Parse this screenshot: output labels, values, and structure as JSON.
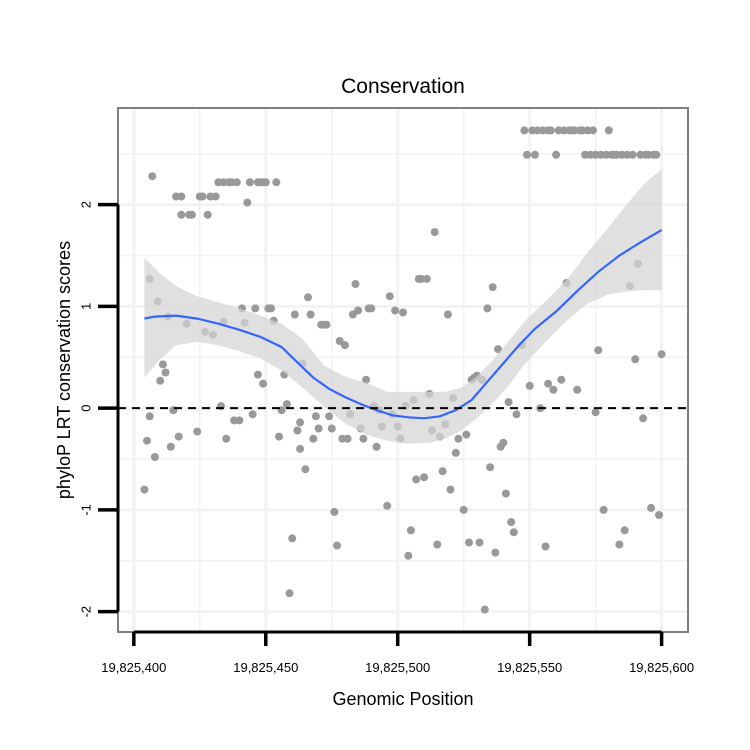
{
  "chart_data": {
    "type": "scatter",
    "title": "Conservation",
    "xlabel": "Genomic Position",
    "ylabel": "phyloP LRT conservation scores",
    "xlim": [
      19825394,
      19825610
    ],
    "ylim": [
      -2.2,
      2.95
    ],
    "x_ticks": [
      19825400,
      19825450,
      19825500,
      19825550,
      19825600
    ],
    "x_tick_labels": [
      "19,825,400",
      "19,825,450",
      "19,825,500",
      "19,825,550",
      "19,825,600"
    ],
    "y_ticks": [
      -2,
      -1,
      0,
      1,
      2
    ],
    "y_tick_labels": [
      "-2",
      "-1",
      "0",
      "1",
      "2"
    ],
    "reference_line": 0,
    "colors": {
      "points": "#999999",
      "smooth": "#3366ff",
      "band": "#d4d4d4",
      "frame": "#7f7f7f",
      "grid": "#f2f2f2"
    },
    "points": [
      [
        19825404,
        -0.8
      ],
      [
        19825405,
        -0.32
      ],
      [
        19825406,
        -0.08
      ],
      [
        19825406,
        1.27
      ],
      [
        19825407,
        2.28
      ],
      [
        19825408,
        -0.48
      ],
      [
        19825409,
        1.05
      ],
      [
        19825410,
        0.27
      ],
      [
        19825411,
        0.43
      ],
      [
        19825412,
        0.35
      ],
      [
        19825413,
        0.9
      ],
      [
        19825414,
        -0.38
      ],
      [
        19825415,
        -0.02
      ],
      [
        19825416,
        2.08
      ],
      [
        19825417,
        -0.28
      ],
      [
        19825418,
        2.08
      ],
      [
        19825418,
        1.9
      ],
      [
        19825420,
        0.83
      ],
      [
        19825421,
        1.9
      ],
      [
        19825422,
        1.9
      ],
      [
        19825424,
        -0.23
      ],
      [
        19825425,
        2.08
      ],
      [
        19825426,
        2.08
      ],
      [
        19825427,
        0.75
      ],
      [
        19825428,
        1.9
      ],
      [
        19825429,
        2.08
      ],
      [
        19825430,
        0.72
      ],
      [
        19825431,
        2.08
      ],
      [
        19825432,
        2.22
      ],
      [
        19825433,
        0.02
      ],
      [
        19825434,
        0.85
      ],
      [
        19825434,
        2.22
      ],
      [
        19825435,
        -0.3
      ],
      [
        19825436,
        2.22
      ],
      [
        19825437,
        2.22
      ],
      [
        19825438,
        -0.12
      ],
      [
        19825439,
        2.22
      ],
      [
        19825440,
        -0.12
      ],
      [
        19825441,
        0.98
      ],
      [
        19825442,
        0.84
      ],
      [
        19825443,
        2.02
      ],
      [
        19825444,
        2.22
      ],
      [
        19825445,
        -0.06
      ],
      [
        19825446,
        0.98
      ],
      [
        19825447,
        2.22
      ],
      [
        19825447,
        0.33
      ],
      [
        19825448,
        2.22
      ],
      [
        19825449,
        2.22
      ],
      [
        19825449,
        0.24
      ],
      [
        19825450,
        2.22
      ],
      [
        19825451,
        0.98
      ],
      [
        19825452,
        0.98
      ],
      [
        19825453,
        0.86
      ],
      [
        19825454,
        2.22
      ],
      [
        19825455,
        -0.28
      ],
      [
        19825456,
        -0.02
      ],
      [
        19825457,
        0.33
      ],
      [
        19825458,
        0.04
      ],
      [
        19825459,
        -1.82
      ],
      [
        19825460,
        -1.28
      ],
      [
        19825461,
        0.92
      ],
      [
        19825462,
        -0.22
      ],
      [
        19825463,
        -0.14
      ],
      [
        19825463,
        -0.4
      ],
      [
        19825464,
        0.44
      ],
      [
        19825465,
        -0.6
      ],
      [
        19825466,
        1.09
      ],
      [
        19825467,
        0.92
      ],
      [
        19825468,
        -0.3
      ],
      [
        19825469,
        -0.08
      ],
      [
        19825470,
        -0.2
      ],
      [
        19825471,
        0.82
      ],
      [
        19825472,
        0.82
      ],
      [
        19825473,
        0.82
      ],
      [
        19825474,
        -0.08
      ],
      [
        19825475,
        -0.2
      ],
      [
        19825476,
        -1.02
      ],
      [
        19825477,
        -1.35
      ],
      [
        19825478,
        0.66
      ],
      [
        19825479,
        -0.3
      ],
      [
        19825480,
        0.62
      ],
      [
        19825481,
        -0.3
      ],
      [
        19825482,
        -0.06
      ],
      [
        19825483,
        0.92
      ],
      [
        19825484,
        1.22
      ],
      [
        19825485,
        0.96
      ],
      [
        19825486,
        -0.2
      ],
      [
        19825487,
        -0.3
      ],
      [
        19825488,
        0.28
      ],
      [
        19825489,
        0.98
      ],
      [
        19825490,
        0.98
      ],
      [
        19825491,
        0.02
      ],
      [
        19825492,
        -0.38
      ],
      [
        19825493,
        -0.02
      ],
      [
        19825494,
        -0.18
      ],
      [
        19825496,
        -0.96
      ],
      [
        19825497,
        1.1
      ],
      [
        19825498,
        -0.06
      ],
      [
        19825499,
        0.96
      ],
      [
        19825500,
        -0.18
      ],
      [
        19825501,
        -0.3
      ],
      [
        19825502,
        0.94
      ],
      [
        19825503,
        0.02
      ],
      [
        19825504,
        -1.45
      ],
      [
        19825505,
        -1.2
      ],
      [
        19825506,
        0.08
      ],
      [
        19825507,
        -0.7
      ],
      [
        19825508,
        1.27
      ],
      [
        19825509,
        1.27
      ],
      [
        19825510,
        -0.68
      ],
      [
        19825511,
        1.27
      ],
      [
        19825512,
        0.14
      ],
      [
        19825513,
        -0.22
      ],
      [
        19825514,
        1.73
      ],
      [
        19825515,
        -1.34
      ],
      [
        19825516,
        -0.28
      ],
      [
        19825517,
        -0.62
      ],
      [
        19825518,
        -0.16
      ],
      [
        19825519,
        0.92
      ],
      [
        19825520,
        -0.8
      ],
      [
        19825521,
        0.1
      ],
      [
        19825522,
        -0.44
      ],
      [
        19825523,
        -0.3
      ],
      [
        19825525,
        -1.0
      ],
      [
        19825526,
        -0.26
      ],
      [
        19825527,
        -1.32
      ],
      [
        19825528,
        0.28
      ],
      [
        19825529,
        0.3
      ],
      [
        19825530,
        0.32
      ],
      [
        19825531,
        -1.32
      ],
      [
        19825532,
        0.28
      ],
      [
        19825533,
        -1.98
      ],
      [
        19825534,
        0.98
      ],
      [
        19825535,
        -0.58
      ],
      [
        19825536,
        1.19
      ],
      [
        19825537,
        -1.42
      ],
      [
        19825538,
        0.58
      ],
      [
        19825539,
        -0.38
      ],
      [
        19825540,
        -0.34
      ],
      [
        19825541,
        -0.84
      ],
      [
        19825542,
        0.06
      ],
      [
        19825543,
        -1.12
      ],
      [
        19825544,
        -1.22
      ],
      [
        19825545,
        -0.06
      ],
      [
        19825547,
        0.62
      ],
      [
        19825548,
        2.73
      ],
      [
        19825549,
        2.49
      ],
      [
        19825550,
        0.22
      ],
      [
        19825551,
        2.73
      ],
      [
        19825552,
        2.49
      ],
      [
        19825553,
        2.73
      ],
      [
        19825554,
        0.0
      ],
      [
        19825555,
        2.73
      ],
      [
        19825556,
        -1.36
      ],
      [
        19825557,
        2.73
      ],
      [
        19825557,
        0.24
      ],
      [
        19825558,
        2.73
      ],
      [
        19825559,
        0.18
      ],
      [
        19825560,
        2.49
      ],
      [
        19825561,
        2.73
      ],
      [
        19825562,
        0.28
      ],
      [
        19825563,
        2.73
      ],
      [
        19825564,
        1.23
      ],
      [
        19825565,
        2.73
      ],
      [
        19825566,
        2.73
      ],
      [
        19825567,
        2.73
      ],
      [
        19825568,
        0.18
      ],
      [
        19825569,
        2.73
      ],
      [
        19825570,
        2.73
      ],
      [
        19825571,
        2.49
      ],
      [
        19825572,
        2.73
      ],
      [
        19825573,
        2.49
      ],
      [
        19825574,
        2.73
      ],
      [
        19825575,
        2.49
      ],
      [
        19825575,
        -0.04
      ],
      [
        19825576,
        0.57
      ],
      [
        19825577,
        2.49
      ],
      [
        19825578,
        -1.0
      ],
      [
        19825579,
        2.49
      ],
      [
        19825580,
        2.73
      ],
      [
        19825581,
        2.49
      ],
      [
        19825582,
        2.49
      ],
      [
        19825583,
        2.49
      ],
      [
        19825584,
        -1.34
      ],
      [
        19825585,
        2.49
      ],
      [
        19825586,
        -1.2
      ],
      [
        19825587,
        2.49
      ],
      [
        19825588,
        1.2
      ],
      [
        19825589,
        2.49
      ],
      [
        19825590,
        0.48
      ],
      [
        19825591,
        1.42
      ],
      [
        19825592,
        2.49
      ],
      [
        19825593,
        -0.1
      ],
      [
        19825594,
        2.49
      ],
      [
        19825595,
        2.49
      ],
      [
        19825596,
        -0.98
      ],
      [
        19825597,
        2.49
      ],
      [
        19825598,
        2.49
      ],
      [
        19825599,
        -1.05
      ],
      [
        19825600,
        0.53
      ]
    ],
    "smooth_line": [
      [
        19825404,
        0.88
      ],
      [
        19825408,
        0.9
      ],
      [
        19825416,
        0.91
      ],
      [
        19825424,
        0.88
      ],
      [
        19825432,
        0.83
      ],
      [
        19825440,
        0.77
      ],
      [
        19825448,
        0.7
      ],
      [
        19825456,
        0.6
      ],
      [
        19825462,
        0.45
      ],
      [
        19825468,
        0.3
      ],
      [
        19825474,
        0.19
      ],
      [
        19825480,
        0.11
      ],
      [
        19825486,
        0.04
      ],
      [
        19825492,
        -0.02
      ],
      [
        19825498,
        -0.07
      ],
      [
        19825504,
        -0.09
      ],
      [
        19825510,
        -0.1
      ],
      [
        19825516,
        -0.08
      ],
      [
        19825522,
        -0.02
      ],
      [
        19825528,
        0.08
      ],
      [
        19825534,
        0.26
      ],
      [
        19825540,
        0.44
      ],
      [
        19825546,
        0.62
      ],
      [
        19825552,
        0.78
      ],
      [
        19825560,
        0.95
      ],
      [
        19825568,
        1.15
      ],
      [
        19825576,
        1.34
      ],
      [
        19825584,
        1.5
      ],
      [
        19825592,
        1.63
      ],
      [
        19825600,
        1.75
      ]
    ],
    "confidence_band": [
      [
        19825404,
        0.3,
        1.48
      ],
      [
        19825410,
        0.48,
        1.32
      ],
      [
        19825416,
        0.62,
        1.2
      ],
      [
        19825424,
        0.65,
        1.1
      ],
      [
        19825432,
        0.62,
        1.04
      ],
      [
        19825440,
        0.56,
        0.98
      ],
      [
        19825448,
        0.49,
        0.91
      ],
      [
        19825456,
        0.37,
        0.83
      ],
      [
        19825464,
        0.2,
        0.68
      ],
      [
        19825472,
        0.02,
        0.42
      ],
      [
        19825480,
        -0.15,
        0.31
      ],
      [
        19825488,
        -0.26,
        0.25
      ],
      [
        19825496,
        -0.32,
        0.16
      ],
      [
        19825504,
        -0.35,
        0.16
      ],
      [
        19825512,
        -0.34,
        0.16
      ],
      [
        19825518,
        -0.3,
        0.16
      ],
      [
        19825524,
        -0.22,
        0.2
      ],
      [
        19825530,
        -0.1,
        0.31
      ],
      [
        19825536,
        0.05,
        0.47
      ],
      [
        19825542,
        0.22,
        0.66
      ],
      [
        19825548,
        0.43,
        0.85
      ],
      [
        19825556,
        0.65,
        1.05
      ],
      [
        19825564,
        0.86,
        1.26
      ],
      [
        19825572,
        1.03,
        1.53
      ],
      [
        19825580,
        1.12,
        1.78
      ],
      [
        19825588,
        1.15,
        2.04
      ],
      [
        19825594,
        1.16,
        2.22
      ],
      [
        19825600,
        1.16,
        2.35
      ]
    ]
  }
}
